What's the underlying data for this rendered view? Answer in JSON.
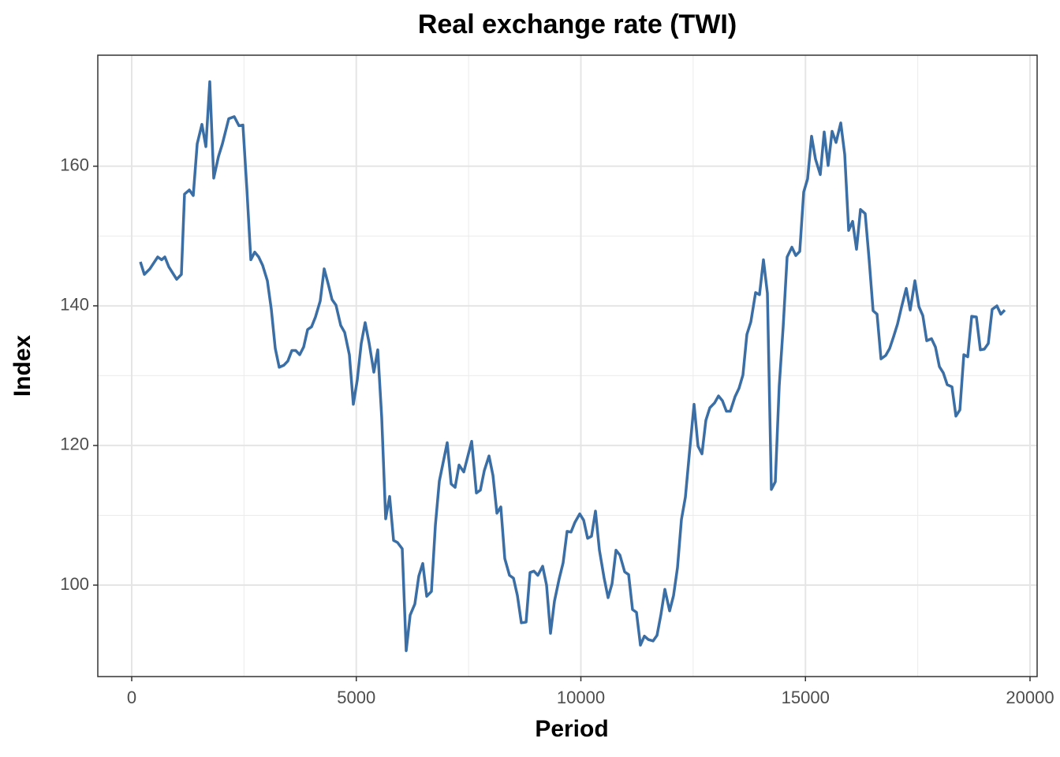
{
  "chart_data": {
    "type": "line",
    "title": "Real exchange rate (TWI)",
    "x_label": "Period",
    "y_label": "Index",
    "color": "#3a6ea5",
    "grid": true,
    "xlim": [
      -755,
      20158
    ],
    "ylim": [
      86.9,
      175.9
    ],
    "xticks": [
      0,
      5000,
      10000,
      15000,
      20000
    ],
    "yticks": [
      100,
      120,
      140,
      160
    ],
    "x": [
      193,
      281,
      404,
      579,
      667,
      738,
      825,
      1001,
      1106,
      1176,
      1282,
      1370,
      1458,
      1563,
      1651,
      1738,
      1826,
      1932,
      2019,
      2160,
      2283,
      2388,
      2476,
      2564,
      2652,
      2739,
      2827,
      2915,
      3020,
      3108,
      3196,
      3284,
      3389,
      3477,
      3565,
      3653,
      3740,
      3828,
      3916,
      4004,
      4091,
      4197,
      4285,
      4372,
      4460,
      4548,
      4653,
      4741,
      4846,
      4934,
      5022,
      5110,
      5197,
      5285,
      5391,
      5478,
      5566,
      5654,
      5742,
      5830,
      5918,
      6023,
      6111,
      6199,
      6304,
      6392,
      6480,
      6568,
      6673,
      6761,
      6849,
      7024,
      7112,
      7200,
      7288,
      7393,
      7569,
      7674,
      7762,
      7850,
      7955,
      8043,
      8131,
      8218,
      8306,
      8411,
      8499,
      8587,
      8675,
      8780,
      8868,
      8955,
      9043,
      9149,
      9236,
      9324,
      9412,
      9517,
      9605,
      9693,
      9781,
      9868,
      9974,
      10062,
      10150,
      10237,
      10325,
      10413,
      10518,
      10606,
      10694,
      10782,
      10869,
      10975,
      11063,
      11150,
      11238,
      11326,
      11414,
      11502,
      11607,
      11695,
      11783,
      11870,
      11976,
      12063,
      12151,
      12239,
      12327,
      12415,
      12520,
      12608,
      12696,
      12783,
      12871,
      12977,
      13064,
      13152,
      13240,
      13327,
      13433,
      13521,
      13608,
      13696,
      13784,
      13890,
      13977,
      14065,
      14153,
      14241,
      14329,
      14416,
      14504,
      14592,
      14698,
      14785,
      14873,
      14961,
      15048,
      15136,
      15224,
      15330,
      15417,
      15505,
      15593,
      15681,
      15786,
      15874,
      15962,
      16050,
      16137,
      16225,
      16330,
      16418,
      16506,
      16594,
      16682,
      16787,
      16875,
      16963,
      17050,
      17138,
      17244,
      17332,
      17437,
      17525,
      17613,
      17700,
      17806,
      17894,
      17982,
      18069,
      18157,
      18262,
      18350,
      18438,
      18526,
      18613,
      18701,
      18806,
      18894,
      18982,
      19070,
      19157,
      19263,
      19350,
      19438
    ],
    "values": [
      146.3,
      144.5,
      145.3,
      147.0,
      146.6,
      147.0,
      145.6,
      143.8,
      144.5,
      156.0,
      156.6,
      155.8,
      163.2,
      166.0,
      162.8,
      172.1,
      158.3,
      161.4,
      163.2,
      166.8,
      167.1,
      165.8,
      165.9,
      156.7,
      146.6,
      147.7,
      147.0,
      145.8,
      143.6,
      139.5,
      133.9,
      131.2,
      131.5,
      132.1,
      133.6,
      133.6,
      133.0,
      134.1,
      136.6,
      137.0,
      138.4,
      140.7,
      145.3,
      143.2,
      140.9,
      140.1,
      137.2,
      136.2,
      133.0,
      125.9,
      129.4,
      134.6,
      137.6,
      134.7,
      130.5,
      133.7,
      124.0,
      109.5,
      112.7,
      106.4,
      106.1,
      105.2,
      90.6,
      95.7,
      97.3,
      101.3,
      103.1,
      98.4,
      99.1,
      108.6,
      114.9,
      120.4,
      114.5,
      114.0,
      117.2,
      116.2,
      120.6,
      113.2,
      113.6,
      116.4,
      118.5,
      115.7,
      110.3,
      111.2,
      103.8,
      101.4,
      101.0,
      98.5,
      94.6,
      94.7,
      101.8,
      102.0,
      101.4,
      102.7,
      100.0,
      93.1,
      97.7,
      100.9,
      103.2,
      107.7,
      107.6,
      109.0,
      110.2,
      109.3,
      106.7,
      107.0,
      110.6,
      105.0,
      101.0,
      98.2,
      100.2,
      105.0,
      104.3,
      101.9,
      101.5,
      96.5,
      96.1,
      91.4,
      92.7,
      92.2,
      92.0,
      92.8,
      95.8,
      99.4,
      96.3,
      98.5,
      102.5,
      109.4,
      112.6,
      118.8,
      125.9,
      119.9,
      118.8,
      123.6,
      125.4,
      126.1,
      127.1,
      126.4,
      124.9,
      124.9,
      127.0,
      128.2,
      130.1,
      135.9,
      137.7,
      141.9,
      141.6,
      146.6,
      141.8,
      113.7,
      114.8,
      128.5,
      137.0,
      147.0,
      148.4,
      147.2,
      147.8,
      156.3,
      158.2,
      164.3,
      161.0,
      158.8,
      164.9,
      160.1,
      165.0,
      163.4,
      166.2,
      161.7,
      150.8,
      152.1,
      148.1,
      153.8,
      153.2,
      146.6,
      139.3,
      138.8,
      132.4,
      132.9,
      133.9,
      135.6,
      137.4,
      139.8,
      142.5,
      139.4,
      143.6,
      139.9,
      138.6,
      135.0,
      135.3,
      134.1,
      131.3,
      130.4,
      128.7,
      128.4,
      124.2,
      125.1,
      133.0,
      132.7,
      138.5,
      138.4,
      133.7,
      133.8,
      134.6,
      139.5,
      140.0,
      138.8,
      139.4
    ]
  }
}
